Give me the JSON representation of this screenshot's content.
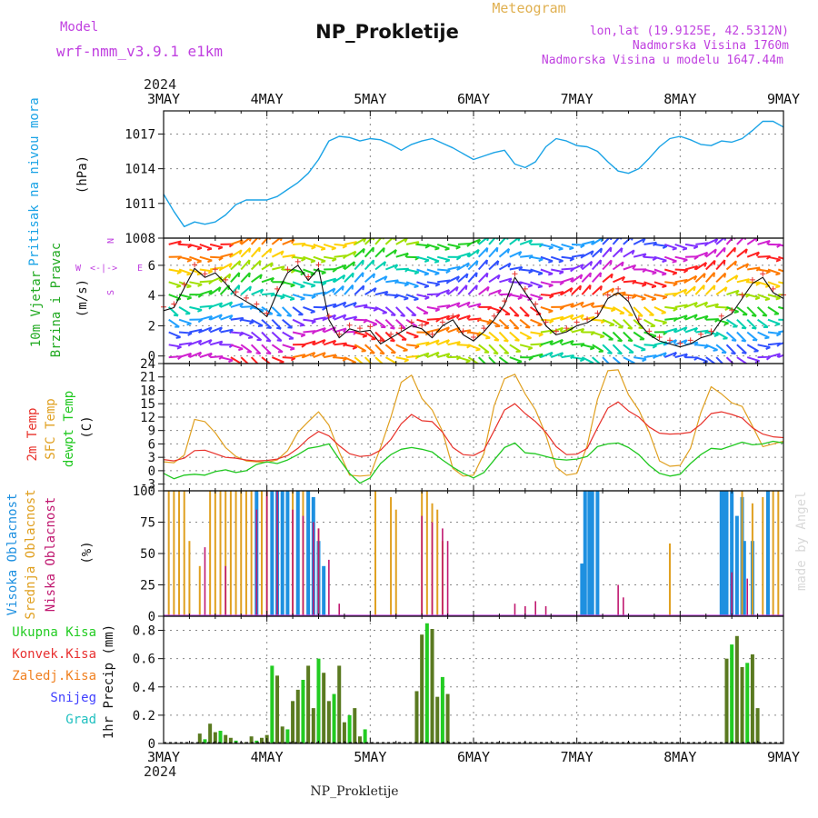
{
  "header": {
    "model_label": "Model",
    "model_name": "wrf-nmm_v3.9.1 e1km",
    "main_title": "NP_Prokletije",
    "subtitle": "Meteogram",
    "coords": "lon,lat (19.9125E, 42.5312N)",
    "altitude": "Nadmorska Visina 1760m",
    "model_altitude": "Nadmorska Visina u modelu 1647.44m",
    "top_year": "2024",
    "bottom_year": "2024",
    "footer": "NP_Prokletije",
    "watermark": "made by Angel"
  },
  "colors": {
    "pressure": "#1aa3e6",
    "temp2m": "#e8312a",
    "sfctemp": "#e0a020",
    "dewpt": "#20c820",
    "high_cloud": "#1e90e0",
    "mid_cloud": "#e0a020",
    "low_cloud": "#c01870",
    "precip_total": "#22cc22",
    "precip_conv": "#e83030",
    "precip_frozen": "#f08020",
    "snow": "#4040ff",
    "graupel": "#20c0c0",
    "wind_label": "#22aa22",
    "axis_label_purple": "#c040e0"
  },
  "chart_data": [
    {
      "type": "line",
      "panel": "pressure",
      "ylabel": "Pritisak na nivou mora",
      "yunit": "(hPa)",
      "ylim": [
        1008,
        1019
      ],
      "yticks": [
        1008,
        1011,
        1014,
        1017
      ],
      "grid": true,
      "x_days": [
        "3MAY",
        "4MAY",
        "5MAY",
        "6MAY",
        "7MAY",
        "8MAY",
        "9MAY"
      ],
      "series": [
        {
          "x": [
            0,
            0.1,
            0.2,
            0.3,
            0.4,
            0.5,
            0.6,
            0.7,
            0.8,
            0.9,
            1.0,
            1.1,
            1.2,
            1.3,
            1.4,
            1.5,
            1.6,
            1.7,
            1.8,
            1.9,
            2.0,
            2.1,
            2.2,
            2.3,
            2.4,
            2.5,
            2.6,
            2.7,
            2.8,
            2.9,
            3.0,
            3.1,
            3.2,
            3.3,
            3.4,
            3.5,
            3.6,
            3.7,
            3.8,
            3.9,
            4.0,
            4.1,
            4.2,
            4.3,
            4.4,
            4.5,
            4.6,
            4.7,
            4.8,
            4.9,
            5.0,
            5.1,
            5.2,
            5.3,
            5.4,
            5.5,
            5.6,
            5.7,
            5.8,
            5.9,
            6.0
          ],
          "values": [
            1011.8,
            1010.3,
            1009,
            1009.4,
            1009.2,
            1009.4,
            1010,
            1010.9,
            1011.3,
            1011.3,
            1011.3,
            1011.6,
            1012.2,
            1012.8,
            1013.6,
            1014.8,
            1016.4,
            1016.8,
            1016.7,
            1016.4,
            1016.6,
            1016.5,
            1016.1,
            1015.6,
            1016.1,
            1016.4,
            1016.6,
            1016.2,
            1015.8,
            1015.3,
            1014.8,
            1015.1,
            1015.4,
            1015.6,
            1014.4,
            1014.1,
            1014.6,
            1015.9,
            1016.6,
            1016.4,
            1016,
            1015.9,
            1015.5,
            1014.6,
            1013.8,
            1013.6,
            1014,
            1014.9,
            1015.9,
            1016.6,
            1016.8,
            1016.5,
            1016.1,
            1016,
            1016.4,
            1016.3,
            1016.6,
            1017.3,
            1018.1,
            1018.1,
            1017.6
          ]
        }
      ]
    },
    {
      "type": "line",
      "panel": "wind",
      "ylabel": "10m Vjetar Brzina i Pravac",
      "yunit": "(m/s)",
      "compass": [
        "N",
        "W",
        "E",
        "S"
      ],
      "ylim": [
        -0.5,
        7.8
      ],
      "yticks": [
        0,
        2,
        4,
        6
      ],
      "grid": true,
      "series": [
        {
          "name": "speed",
          "x": [
            0,
            0.1,
            0.2,
            0.3,
            0.4,
            0.5,
            0.6,
            0.7,
            0.8,
            0.9,
            1.0,
            1.1,
            1.2,
            1.3,
            1.4,
            1.5,
            1.6,
            1.7,
            1.8,
            1.9,
            2.0,
            2.1,
            2.2,
            2.3,
            2.4,
            2.5,
            2.6,
            2.7,
            2.8,
            2.9,
            3.0,
            3.1,
            3.2,
            3.3,
            3.4,
            3.5,
            3.6,
            3.7,
            3.8,
            3.9,
            4.0,
            4.1,
            4.2,
            4.3,
            4.4,
            4.5,
            4.6,
            4.7,
            4.8,
            4.9,
            5.0,
            5.1,
            5.2,
            5.3,
            5.4,
            5.5,
            5.6,
            5.7,
            5.8,
            5.9,
            6.0
          ],
          "values": [
            3.0,
            3.2,
            4.5,
            5.8,
            5.2,
            5.5,
            4.8,
            4.0,
            3.6,
            3.2,
            2.6,
            4.2,
            5.5,
            6.0,
            5.0,
            5.8,
            2.4,
            1.2,
            1.8,
            1.6,
            1.7,
            0.8,
            1.2,
            1.6,
            2.0,
            1.8,
            1.2,
            2.0,
            2.4,
            1.4,
            1.0,
            1.6,
            2.4,
            3.4,
            5.2,
            4.2,
            3.2,
            2.0,
            1.4,
            1.6,
            2.0,
            2.2,
            2.6,
            3.8,
            4.2,
            3.6,
            2.2,
            1.4,
            1.0,
            0.8,
            0.6,
            0.8,
            1.2,
            1.4,
            2.4,
            2.8,
            3.8,
            4.8,
            5.2,
            4.2,
            3.8
          ]
        }
      ]
    },
    {
      "type": "line",
      "panel": "temperature",
      "ylabels": [
        "2m Temp",
        "SFC Temp",
        "dewpt Temp"
      ],
      "yunit": "(C)",
      "ylim": [
        -4.5,
        24
      ],
      "yticks": [
        -3,
        0,
        3,
        6,
        9,
        12,
        15,
        18,
        21,
        24
      ],
      "grid": true,
      "series": [
        {
          "name": "2m Temp",
          "x": [
            0,
            0.1,
            0.2,
            0.3,
            0.4,
            0.5,
            0.6,
            0.7,
            0.8,
            0.9,
            1.0,
            1.1,
            1.2,
            1.3,
            1.4,
            1.5,
            1.6,
            1.7,
            1.8,
            1.9,
            2.0,
            2.1,
            2.2,
            2.3,
            2.4,
            2.5,
            2.6,
            2.7,
            2.8,
            2.9,
            3.0,
            3.1,
            3.2,
            3.3,
            3.4,
            3.5,
            3.6,
            3.7,
            3.8,
            3.9,
            4.0,
            4.1,
            4.2,
            4.3,
            4.4,
            4.5,
            4.6,
            4.7,
            4.8,
            4.9,
            5.0,
            5.1,
            5.2,
            5.3,
            5.4,
            5.5,
            5.6,
            5.7,
            5.8,
            5.9,
            6.0
          ],
          "values": [
            2.5,
            2.2,
            2.8,
            4.5,
            4.6,
            3.8,
            3.0,
            2.8,
            2.4,
            2.2,
            2.3,
            2.6,
            3.4,
            5.0,
            7.2,
            8.8,
            7.8,
            5.6,
            3.8,
            3.2,
            3.4,
            4.6,
            7.0,
            10.5,
            12.6,
            11.2,
            11.0,
            8.6,
            5.2,
            3.6,
            3.4,
            4.6,
            9.0,
            13.6,
            15.0,
            12.8,
            11.0,
            8.6,
            5.4,
            3.6,
            3.7,
            5.0,
            9.6,
            14.0,
            15.4,
            13.4,
            12.0,
            9.8,
            8.4,
            8.2,
            8.3,
            8.6,
            10.4,
            12.8,
            13.2,
            12.6,
            11.8,
            9.6,
            8.2,
            7.6,
            7.4
          ]
        },
        {
          "name": "SFC Temp",
          "x": [
            0,
            0.1,
            0.2,
            0.3,
            0.4,
            0.5,
            0.6,
            0.7,
            0.8,
            0.9,
            1.0,
            1.1,
            1.2,
            1.3,
            1.4,
            1.5,
            1.6,
            1.7,
            1.8,
            1.9,
            2.0,
            2.1,
            2.2,
            2.3,
            2.4,
            2.5,
            2.6,
            2.7,
            2.8,
            2.9,
            3.0,
            3.1,
            3.2,
            3.3,
            3.4,
            3.5,
            3.6,
            3.7,
            3.8,
            3.9,
            4.0,
            4.1,
            4.2,
            4.3,
            4.4,
            4.5,
            4.6,
            4.7,
            4.8,
            4.9,
            5.0,
            5.1,
            5.2,
            5.3,
            5.4,
            5.5,
            5.6,
            5.7,
            5.8,
            5.9,
            6.0
          ],
          "values": [
            2.0,
            1.8,
            3.5,
            11.5,
            11.0,
            8.5,
            5.2,
            3.2,
            2.2,
            2.0,
            1.9,
            2.4,
            4.5,
            8.6,
            11.0,
            13.2,
            10.2,
            4.2,
            -1.0,
            -1.2,
            -1.0,
            5.2,
            12.0,
            19.8,
            21.4,
            16.2,
            13.6,
            8.8,
            0.5,
            -1.2,
            -1.0,
            3.8,
            14.6,
            20.6,
            21.6,
            17.2,
            13.6,
            8.0,
            0.8,
            -1.0,
            -0.6,
            5.6,
            16.0,
            22.4,
            22.6,
            17.0,
            13.6,
            8.6,
            2.2,
            1.0,
            1.2,
            5.0,
            13.0,
            18.8,
            17.2,
            15.2,
            14.4,
            10.0,
            5.4,
            6.0,
            6.6
          ]
        },
        {
          "name": "dewpt Temp",
          "x": [
            0,
            0.1,
            0.2,
            0.3,
            0.4,
            0.5,
            0.6,
            0.7,
            0.8,
            0.9,
            1.0,
            1.1,
            1.2,
            1.3,
            1.4,
            1.5,
            1.6,
            1.7,
            1.8,
            1.9,
            2.0,
            2.1,
            2.2,
            2.3,
            2.4,
            2.5,
            2.6,
            2.7,
            2.8,
            2.9,
            3.0,
            3.1,
            3.2,
            3.3,
            3.4,
            3.5,
            3.6,
            3.7,
            3.8,
            3.9,
            4.0,
            4.1,
            4.2,
            4.3,
            4.4,
            4.5,
            4.6,
            4.7,
            4.8,
            4.9,
            5.0,
            5.1,
            5.2,
            5.3,
            5.4,
            5.5,
            5.6,
            5.7,
            5.8,
            5.9,
            6.0
          ],
          "values": [
            -0.6,
            -1.8,
            -1.0,
            -0.8,
            -1.0,
            -0.2,
            0.2,
            -0.4,
            0.0,
            1.4,
            2.0,
            1.6,
            2.4,
            3.6,
            5.0,
            5.4,
            6.0,
            2.6,
            -0.6,
            -2.8,
            -1.6,
            1.6,
            3.6,
            4.8,
            5.2,
            4.8,
            4.2,
            2.4,
            0.8,
            -0.6,
            -1.6,
            -0.4,
            2.4,
            5.2,
            6.2,
            4.0,
            3.8,
            3.2,
            2.6,
            2.4,
            2.6,
            3.2,
            5.4,
            6.0,
            6.2,
            5.2,
            3.6,
            1.2,
            -0.6,
            -1.2,
            -0.8,
            1.6,
            3.6,
            5.0,
            4.8,
            5.6,
            6.4,
            5.8,
            6.0,
            6.6,
            6.2
          ]
        }
      ]
    },
    {
      "type": "bar",
      "panel": "cloud",
      "ylabels": [
        "Visoka Oblacnost",
        "Srednja Oblacnost",
        "Niska Oblacnost"
      ],
      "yunit": "(%)",
      "ylim": [
        0,
        100
      ],
      "yticks": [
        0,
        25,
        50,
        75,
        100
      ],
      "grid": true,
      "series": [
        {
          "name": "Visoka Oblacnost",
          "x": [
            0.9,
            1.05,
            1.1,
            1.15,
            1.2,
            1.3,
            1.4,
            1.45,
            1.5,
            1.55,
            4.05,
            4.08,
            4.12,
            4.15,
            4.2,
            5.4,
            5.42,
            5.45,
            5.5,
            5.55,
            5.6,
            5.62,
            5.7,
            5.85
          ],
          "values": [
            100,
            100,
            100,
            100,
            100,
            100,
            100,
            95,
            60,
            40,
            42,
            100,
            100,
            100,
            100,
            100,
            100,
            100,
            100,
            80,
            95,
            60,
            60,
            100
          ]
        },
        {
          "name": "Srednja Oblacnost",
          "x": [
            0.05,
            0.1,
            0.15,
            0.2,
            0.25,
            0.35,
            0.45,
            0.5,
            0.55,
            0.6,
            0.65,
            0.7,
            0.75,
            0.8,
            0.85,
            0.95,
            1.0,
            1.25,
            1.35,
            1.5,
            2.05,
            2.2,
            2.25,
            2.5,
            2.55,
            2.6,
            2.65,
            2.7,
            4.9,
            5.6,
            5.7,
            5.8,
            5.9,
            5.95
          ],
          "values": [
            100,
            100,
            100,
            100,
            60,
            40,
            100,
            100,
            100,
            100,
            100,
            100,
            100,
            100,
            100,
            100,
            100,
            100,
            100,
            70,
            100,
            95,
            85,
            100,
            100,
            90,
            85,
            60,
            58,
            100,
            90,
            95,
            100,
            100
          ]
        },
        {
          "name": "Niska Oblacnost",
          "x": [
            0.4,
            0.6,
            0.9,
            1.0,
            1.1,
            1.25,
            1.35,
            1.45,
            1.5,
            1.6,
            1.7,
            2.5,
            2.6,
            2.7,
            2.75,
            3.4,
            3.5,
            3.6,
            3.7,
            4.4,
            4.45,
            5.5,
            5.65
          ],
          "values": [
            55,
            40,
            85,
            100,
            100,
            85,
            80,
            75,
            70,
            45,
            10,
            80,
            75,
            70,
            60,
            10,
            8,
            12,
            8,
            25,
            15,
            35,
            30
          ]
        }
      ]
    },
    {
      "type": "bar",
      "panel": "precip",
      "ylabels": [
        "Ukupna Kisa",
        "Konvek.Kisa",
        "Zaledj.Kisa",
        "Snijeg",
        "Grad"
      ],
      "yunit": "1hr Precip (mm)",
      "ylim": [
        0,
        0.9
      ],
      "yticks": [
        0,
        0.2,
        0.4,
        0.6,
        0.8
      ],
      "grid": true,
      "series": [
        {
          "name": "Ukupna Kisa",
          "x": [
            0.35,
            0.4,
            0.45,
            0.5,
            0.55,
            0.6,
            0.65,
            0.7,
            0.8,
            0.85,
            0.9,
            0.95,
            1.0,
            1.05,
            1.1,
            1.15,
            1.2,
            1.25,
            1.3,
            1.35,
            1.4,
            1.45,
            1.5,
            1.55,
            1.6,
            1.65,
            1.7,
            1.75,
            1.8,
            1.85,
            1.9,
            1.95,
            2.45,
            2.5,
            2.55,
            2.6,
            2.65,
            2.7,
            2.75,
            5.45,
            5.5,
            5.55,
            5.6,
            5.65,
            5.7,
            5.75
          ],
          "values": [
            0.07,
            0.03,
            0.14,
            0.08,
            0.09,
            0.06,
            0.04,
            0.02,
            0.01,
            0.05,
            0.02,
            0.04,
            0.06,
            0.55,
            0.48,
            0.12,
            0.1,
            0.3,
            0.38,
            0.45,
            0.55,
            0.25,
            0.6,
            0.5,
            0.3,
            0.35,
            0.55,
            0.15,
            0.2,
            0.25,
            0.05,
            0.1,
            0.37,
            0.77,
            0.85,
            0.81,
            0.33,
            0.47,
            0.35,
            0.6,
            0.7,
            0.76,
            0.54,
            0.57,
            0.63,
            0.25
          ]
        }
      ]
    }
  ]
}
